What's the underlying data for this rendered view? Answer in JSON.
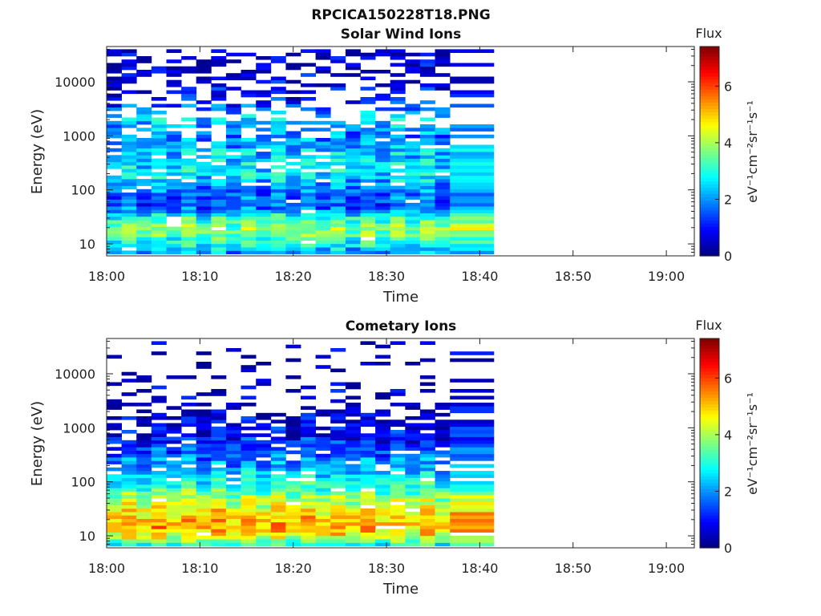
{
  "figure": {
    "title": "RPCICA150228T18.PNG"
  },
  "colormap": {
    "name": "jet",
    "stops": [
      "#00007f",
      "#0000ff",
      "#007fff",
      "#00ffff",
      "#7fff7f",
      "#ffff00",
      "#ff7f00",
      "#ff0000",
      "#7f0000"
    ]
  },
  "chart_data": [
    {
      "type": "heatmap",
      "title": "Solar Wind Ions",
      "xlabel": "Time",
      "ylabel": "Energy (eV)",
      "xticks": [
        "18:00",
        "18:10",
        "18:20",
        "18:30",
        "18:40",
        "18:50",
        "19:00"
      ],
      "xlim_minutes": [
        0,
        63
      ],
      "yscale": "log",
      "yticks": [
        "10",
        "100",
        "1000",
        "10000"
      ],
      "ylim": [
        6,
        45000
      ],
      "colorbar": {
        "title": "Flux",
        "label": "eV⁻¹cm⁻²sr⁻¹s⁻¹",
        "range": [
          0,
          7.4
        ],
        "ticks": [
          "0",
          "2",
          "4",
          "6"
        ]
      },
      "data_extent_minutes": [
        0,
        41.5
      ],
      "cycle_minutes": 3.2,
      "scans": [
        {
          "t": 0.0,
          "w": 1.6
        },
        {
          "t": 1.6,
          "w": 1.6
        },
        {
          "t": 3.2,
          "w": 1.6
        },
        {
          "t": 4.8,
          "w": 1.6
        },
        {
          "t": 6.4,
          "w": 1.6
        },
        {
          "t": 8.0,
          "w": 1.6
        },
        {
          "t": 9.6,
          "w": 1.6
        },
        {
          "t": 11.2,
          "w": 1.6
        },
        {
          "t": 12.8,
          "w": 1.6
        },
        {
          "t": 14.4,
          "w": 1.6
        },
        {
          "t": 16.0,
          "w": 1.6
        },
        {
          "t": 17.6,
          "w": 1.6
        },
        {
          "t": 19.2,
          "w": 1.6
        },
        {
          "t": 20.8,
          "w": 1.6
        },
        {
          "t": 22.4,
          "w": 1.6
        },
        {
          "t": 24.0,
          "w": 1.6
        },
        {
          "t": 25.6,
          "w": 1.6
        },
        {
          "t": 27.2,
          "w": 1.6
        },
        {
          "t": 28.8,
          "w": 1.6
        },
        {
          "t": 30.4,
          "w": 1.6
        },
        {
          "t": 32.0,
          "w": 1.6
        },
        {
          "t": 33.6,
          "w": 1.6
        },
        {
          "t": 35.2,
          "w": 1.6
        },
        {
          "t": 36.8,
          "w": 4.7
        }
      ],
      "energy_bins": 60,
      "spectrum_profile": [
        {
          "e": 7,
          "flux": 2.0
        },
        {
          "e": 10,
          "flux": 2.8
        },
        {
          "e": 15,
          "flux": 3.5
        },
        {
          "e": 20,
          "flux": 3.8
        },
        {
          "e": 30,
          "flux": 3.0
        },
        {
          "e": 50,
          "flux": 1.4
        },
        {
          "e": 100,
          "flux": 1.8
        },
        {
          "e": 200,
          "flux": 2.6
        },
        {
          "e": 400,
          "flux": 2.4
        },
        {
          "e": 1000,
          "flux": 1.8
        },
        {
          "e": 2000,
          "flux": 2.4
        },
        {
          "e": 5000,
          "flux": 0.8
        },
        {
          "e": 40000,
          "flux": 0.4
        }
      ]
    },
    {
      "type": "heatmap",
      "title": "Cometary Ions",
      "xlabel": "Time",
      "ylabel": "Energy (eV)",
      "xticks": [
        "18:00",
        "18:10",
        "18:20",
        "18:30",
        "18:40",
        "18:50",
        "19:00"
      ],
      "xlim_minutes": [
        0,
        63
      ],
      "yscale": "log",
      "yticks": [
        "10",
        "100",
        "1000",
        "10000"
      ],
      "ylim": [
        6,
        45000
      ],
      "colorbar": {
        "title": "Flux",
        "label": "eV⁻¹cm⁻²sr⁻¹s⁻¹",
        "range": [
          0,
          7.4
        ],
        "ticks": [
          "0",
          "2",
          "4",
          "6"
        ]
      },
      "data_extent_minutes": [
        0,
        41.5
      ],
      "cycle_minutes": 3.2,
      "scans": [
        {
          "t": 0.0,
          "w": 1.6
        },
        {
          "t": 1.6,
          "w": 1.6
        },
        {
          "t": 3.2,
          "w": 1.6
        },
        {
          "t": 4.8,
          "w": 1.6
        },
        {
          "t": 6.4,
          "w": 1.6
        },
        {
          "t": 8.0,
          "w": 1.6
        },
        {
          "t": 9.6,
          "w": 1.6
        },
        {
          "t": 11.2,
          "w": 1.6
        },
        {
          "t": 12.8,
          "w": 1.6
        },
        {
          "t": 14.4,
          "w": 1.6
        },
        {
          "t": 16.0,
          "w": 1.6
        },
        {
          "t": 17.6,
          "w": 1.6
        },
        {
          "t": 19.2,
          "w": 1.6
        },
        {
          "t": 20.8,
          "w": 1.6
        },
        {
          "t": 22.4,
          "w": 1.6
        },
        {
          "t": 24.0,
          "w": 1.6
        },
        {
          "t": 25.6,
          "w": 1.6
        },
        {
          "t": 27.2,
          "w": 1.6
        },
        {
          "t": 28.8,
          "w": 1.6
        },
        {
          "t": 30.4,
          "w": 1.6
        },
        {
          "t": 32.0,
          "w": 1.6
        },
        {
          "t": 33.6,
          "w": 1.6
        },
        {
          "t": 35.2,
          "w": 1.6
        },
        {
          "t": 36.8,
          "w": 4.7
        }
      ],
      "energy_bins": 60,
      "spectrum_profile": [
        {
          "e": 7,
          "flux": 3.0
        },
        {
          "e": 10,
          "flux": 4.5
        },
        {
          "e": 15,
          "flux": 5.2
        },
        {
          "e": 20,
          "flux": 5.0
        },
        {
          "e": 30,
          "flux": 4.6
        },
        {
          "e": 60,
          "flux": 3.6
        },
        {
          "e": 100,
          "flux": 2.8
        },
        {
          "e": 300,
          "flux": 1.6
        },
        {
          "e": 800,
          "flux": 0.8
        },
        {
          "e": 2500,
          "flux": 0.4
        },
        {
          "e": 40000,
          "flux": 0.2
        }
      ]
    }
  ]
}
